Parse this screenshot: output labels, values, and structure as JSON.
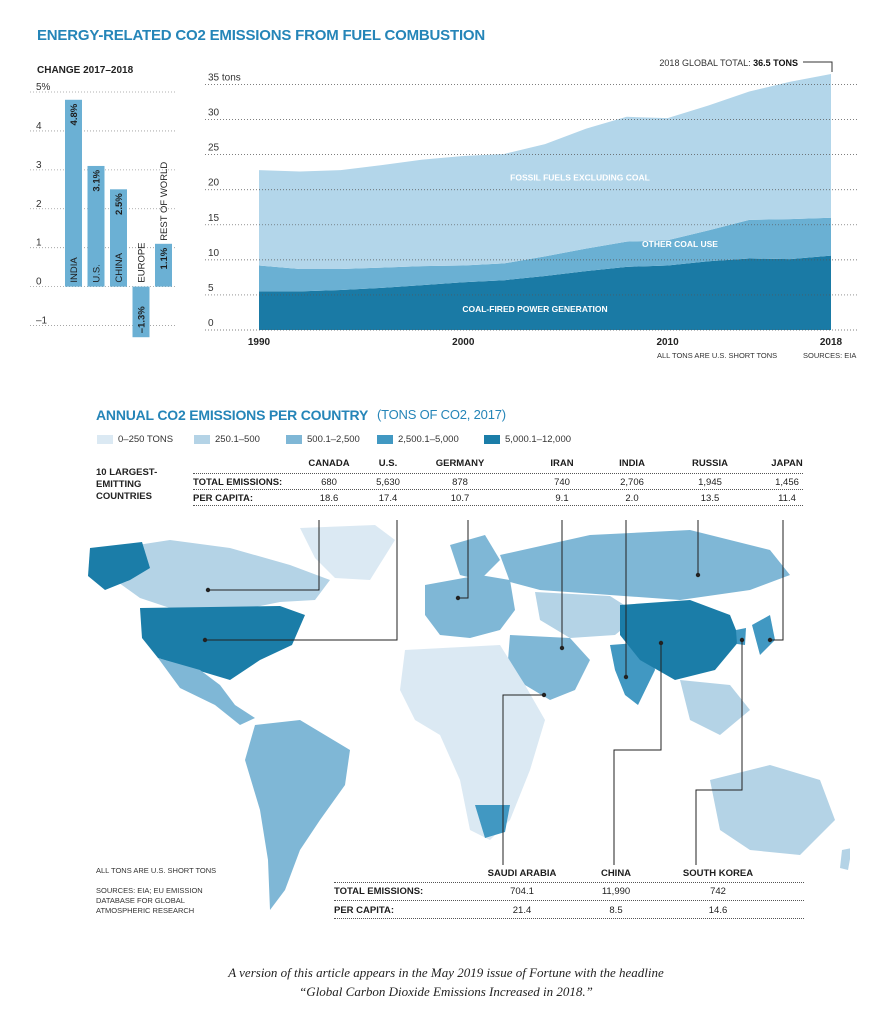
{
  "header": {
    "title": "ENERGY-RELATED CO2 EMISSIONS FROM FUEL COMBUSTION"
  },
  "map_section": {
    "title": "ANNUAL CO2 EMISSIONS PER COUNTRY",
    "subtitle": "(TONS OF CO2, 2017)",
    "legend": [
      {
        "label": "0–250 TONS",
        "color": "#dbe9f3"
      },
      {
        "label": "250.1–500",
        "color": "#b4d3e6"
      },
      {
        "label": "500.1–2,500",
        "color": "#7fb7d6"
      },
      {
        "label": "2,500.1–5,000",
        "color": "#4198c2"
      },
      {
        "label": "5,000.1–12,000",
        "color": "#1b7da8"
      }
    ],
    "top_table": {
      "side_label": "10 LARGEST-EMITTING COUNTRIES",
      "row1_label": "TOTAL EMISSIONS:",
      "row2_label": "PER CAPITA:",
      "countries": [
        {
          "name": "CANADA",
          "total": "680",
          "per_capita": "18.6"
        },
        {
          "name": "U.S.",
          "total": "5,630",
          "per_capita": "17.4"
        },
        {
          "name": "GERMANY",
          "total": "878",
          "per_capita": "10.7"
        },
        {
          "name": "IRAN",
          "total": "740",
          "per_capita": "9.1"
        },
        {
          "name": "INDIA",
          "total": "2,706",
          "per_capita": "2.0"
        },
        {
          "name": "RUSSIA",
          "total": "1,945",
          "per_capita": "13.5"
        },
        {
          "name": "JAPAN",
          "total": "1,456",
          "per_capita": "11.4"
        }
      ]
    },
    "bottom_table": {
      "row1_label": "TOTAL EMISSIONS:",
      "row2_label": "PER CAPITA:",
      "countries": [
        {
          "name": "SAUDI ARABIA",
          "total": "704.1",
          "per_capita": "21.4"
        },
        {
          "name": "CHINA",
          "total": "11,990",
          "per_capita": "8.5"
        },
        {
          "name": "SOUTH KOREA",
          "total": "742",
          "per_capita": "14.6"
        }
      ]
    },
    "notes": {
      "units": "ALL TONS ARE U.S. SHORT TONS",
      "sources": "SOURCES: EIA; EU EMISSION DATABASE FOR GLOBAL ATMOSPHERIC RESEARCH"
    }
  },
  "caption": {
    "line1": "A version of this article appears in the May 2019 issue of Fortune with the headline",
    "line2": "“Global Carbon Dioxide Emissions Increased in 2018.”"
  },
  "chart_data": [
    {
      "type": "bar",
      "title": "CHANGE 2017–2018",
      "categories": [
        "INDIA",
        "U.S.",
        "CHINA",
        "EUROPE",
        "REST OF WORLD"
      ],
      "values": [
        4.8,
        3.1,
        2.5,
        -1.3,
        1.1
      ],
      "value_labels": [
        "4.8%",
        "3.1%",
        "2.5%",
        "–1.3%",
        "1.1%"
      ],
      "ylim": [
        -1.5,
        5
      ],
      "yticks": [
        -1,
        0,
        1,
        2,
        3,
        4,
        5
      ],
      "ytick_labels": [
        "–1",
        "0",
        "1",
        "2",
        "3",
        "4",
        "5%"
      ],
      "color": "#6bb0d4"
    },
    {
      "type": "area",
      "stacked": true,
      "x": [
        1990,
        1992,
        1994,
        1996,
        1998,
        2000,
        2002,
        2004,
        2006,
        2008,
        2010,
        2012,
        2014,
        2016,
        2018
      ],
      "xticks": [
        1990,
        2000,
        2010,
        2018
      ],
      "ylim": [
        0,
        36.5
      ],
      "yticks": [
        0,
        5,
        10,
        15,
        20,
        25,
        30,
        35
      ],
      "ytick_labels": [
        "0",
        "5",
        "10",
        "15",
        "20",
        "25",
        "30",
        "35 tons"
      ],
      "series": [
        {
          "name": "COAL-FIRED POWER GENERATION",
          "color": "#1a7aa5",
          "values": [
            5.5,
            5.5,
            5.7,
            6.0,
            6.4,
            6.8,
            7.1,
            7.7,
            8.4,
            9.0,
            9.2,
            9.8,
            10.2,
            10.1,
            10.6
          ]
        },
        {
          "name": "OTHER COAL USE",
          "color": "#6ab0d3",
          "values": [
            3.7,
            3.2,
            3.0,
            2.9,
            2.7,
            2.4,
            2.4,
            2.8,
            3.2,
            3.6,
            3.6,
            4.4,
            5.5,
            5.7,
            5.4
          ]
        },
        {
          "name": "FOSSIL FUELS EXCLUDING COAL",
          "color": "#b3d6ea",
          "values": [
            13.6,
            13.9,
            14.1,
            14.6,
            15.2,
            15.6,
            15.6,
            16.0,
            17.1,
            17.8,
            17.4,
            17.8,
            18.3,
            19.6,
            20.5
          ]
        }
      ],
      "annotation": {
        "label": "2018 GLOBAL TOTAL:",
        "value": "36.5 TONS"
      },
      "notes": {
        "units": "ALL TONS ARE U.S. SHORT TONS",
        "sources": "SOURCES: EIA"
      }
    }
  ]
}
